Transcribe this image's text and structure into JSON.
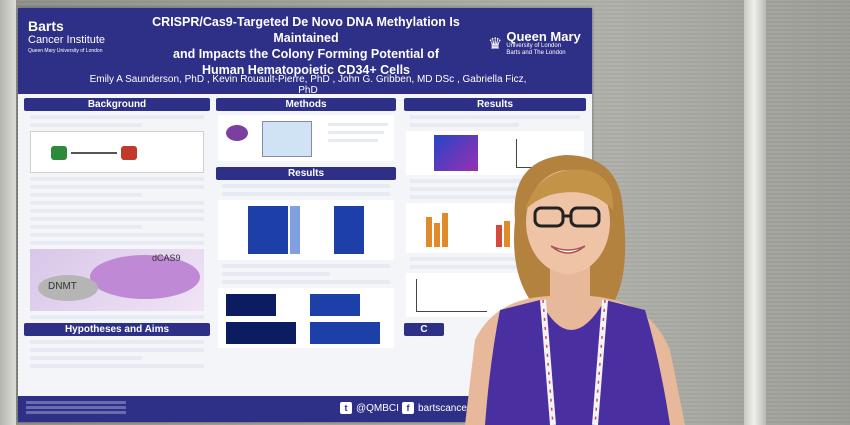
{
  "poster": {
    "logo_left_line1": "Barts",
    "logo_left_line2": "Cancer Institute",
    "logo_left_line3": "Queen Mary University of London",
    "logo_right_line1": "Queen Mary",
    "logo_right_line2": "University of London",
    "logo_right_line3": "Barts and The London",
    "title_line1": "CRISPR/Cas9-Targeted De Novo DNA Methylation Is Maintained",
    "title_line2": "and Impacts the Colony Forming Potential of",
    "title_line3": "Human Hematopoietic CD34+ Cells",
    "authors": "Emily A Saunderson, PhD , Kevin Rouault-Pierre, PhD , John G. Gribben, MD DSc , Gabriella Ficz, PhD",
    "sections": {
      "background": "Background",
      "methods": "Methods",
      "results_left": "Results",
      "results_right": "Results",
      "hypotheses": "Hypotheses and Aims",
      "conclusions": "C"
    },
    "diagram_labels": {
      "dcas9": "dCAS9",
      "dnmt": "DNMT"
    },
    "footer": {
      "twitter": "@QMBCI",
      "facebook": "bartscancerinst"
    }
  }
}
